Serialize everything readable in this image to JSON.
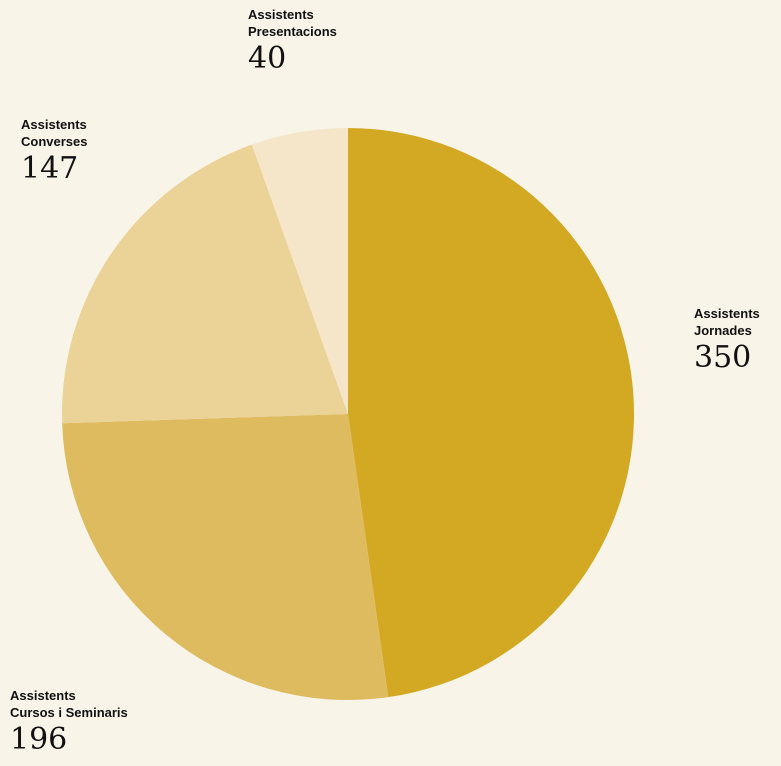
{
  "chart_data": {
    "type": "pie",
    "slices": [
      {
        "label": [
          "Assistents",
          "Jornades"
        ],
        "value": 350,
        "color": "#d3a823"
      },
      {
        "label": [
          "Assistents",
          "Cursos i Seminaris"
        ],
        "value": 196,
        "color": "#dfbb60"
      },
      {
        "label": [
          "Assistents",
          "Converses"
        ],
        "value": 147,
        "color": "#ebd297"
      },
      {
        "label": [
          "Assistents",
          "Presentacions"
        ],
        "value": 40,
        "color": "#f5e6c9"
      }
    ]
  }
}
